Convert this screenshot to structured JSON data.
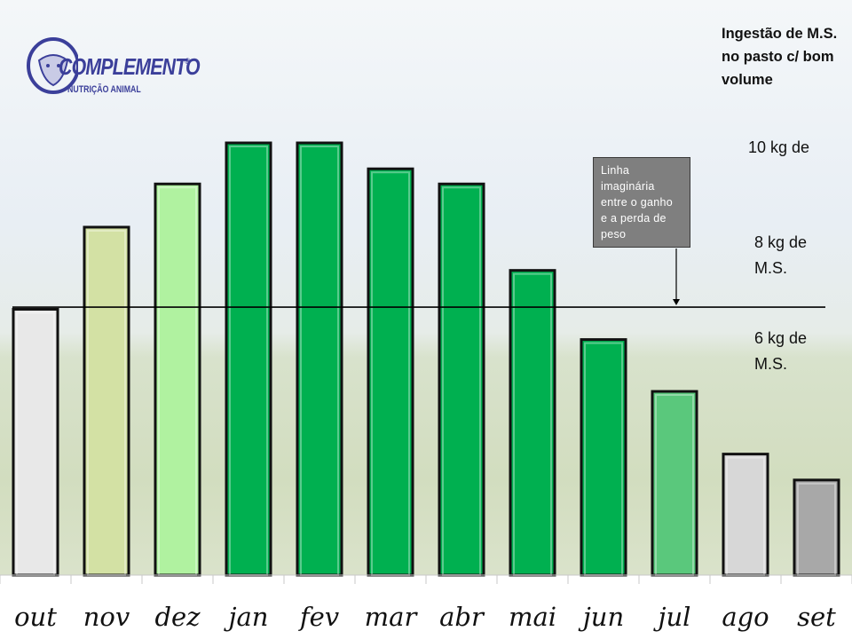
{
  "logo": {
    "brand": "COMPLEMENTO",
    "registered": "®",
    "tagline": "NUTRIÇÃO ANIMAL"
  },
  "side_title": "Ingestão de M.S. no pasto c/ bom volume",
  "side_labels": [
    "10 kg de",
    "8 kg de\nM.S.",
    "6 kg de\nM.S."
  ],
  "callout_text": "Linha imaginária entre o ganho e a perda de peso",
  "colors": {
    "white_bar": "#e8e8e8",
    "light_olive": "#d3e1a4",
    "light_green": "#b0f2a0",
    "green": "#00b050",
    "mid_green": "#5ac87c",
    "light_gray": "#d7d7d7",
    "gray": "#a8a8a8",
    "baseline": "#000000"
  },
  "chart_data": {
    "type": "bar",
    "categories": [
      "out",
      "nov",
      "dez",
      "jan",
      "fev",
      "mar",
      "abr",
      "mai",
      "jun",
      "jul",
      "ago",
      "set"
    ],
    "values": [
      6.15,
      8.05,
      9.05,
      10.0,
      10.0,
      9.4,
      9.05,
      7.05,
      5.45,
      4.25,
      2.8,
      2.2
    ],
    "bar_colors": [
      "white_bar",
      "light_olive",
      "light_green",
      "green",
      "green",
      "green",
      "green",
      "green",
      "green",
      "mid_green",
      "light_gray",
      "gray"
    ],
    "reference_line": {
      "value": 6.2,
      "label": "Linha imaginária entre o ganho e a perda de peso"
    },
    "ylim": [
      0,
      10
    ]
  }
}
